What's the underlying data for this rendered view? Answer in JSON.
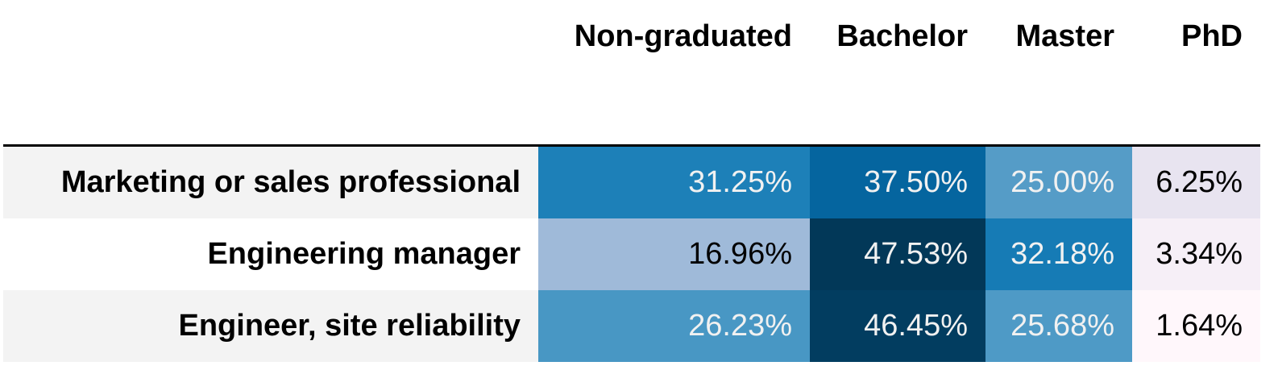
{
  "chart_data": {
    "type": "heatmap",
    "columns": [
      "Non-graduated",
      "Bachelor",
      "Master",
      "PhD"
    ],
    "rows": [
      "Marketing or sales professional",
      "Engineering manager",
      "Engineer, site reliability"
    ],
    "values": [
      [
        31.25,
        37.5,
        25.0,
        6.25
      ],
      [
        16.96,
        47.53,
        32.18,
        3.34
      ],
      [
        26.23,
        46.45,
        25.68,
        1.64
      ]
    ],
    "cell_labels": [
      [
        "31.25%",
        "37.50%",
        "25.00%",
        "6.25%"
      ],
      [
        "16.96%",
        "47.53%",
        "32.18%",
        "3.34%"
      ],
      [
        "26.23%",
        "46.45%",
        "25.68%",
        "1.64%"
      ]
    ],
    "colormap": "PuBu",
    "colors": {
      "low": "#fff7fb",
      "high": "#023858",
      "text_dark": "#000000",
      "text_light": "#f1f1f1"
    }
  }
}
